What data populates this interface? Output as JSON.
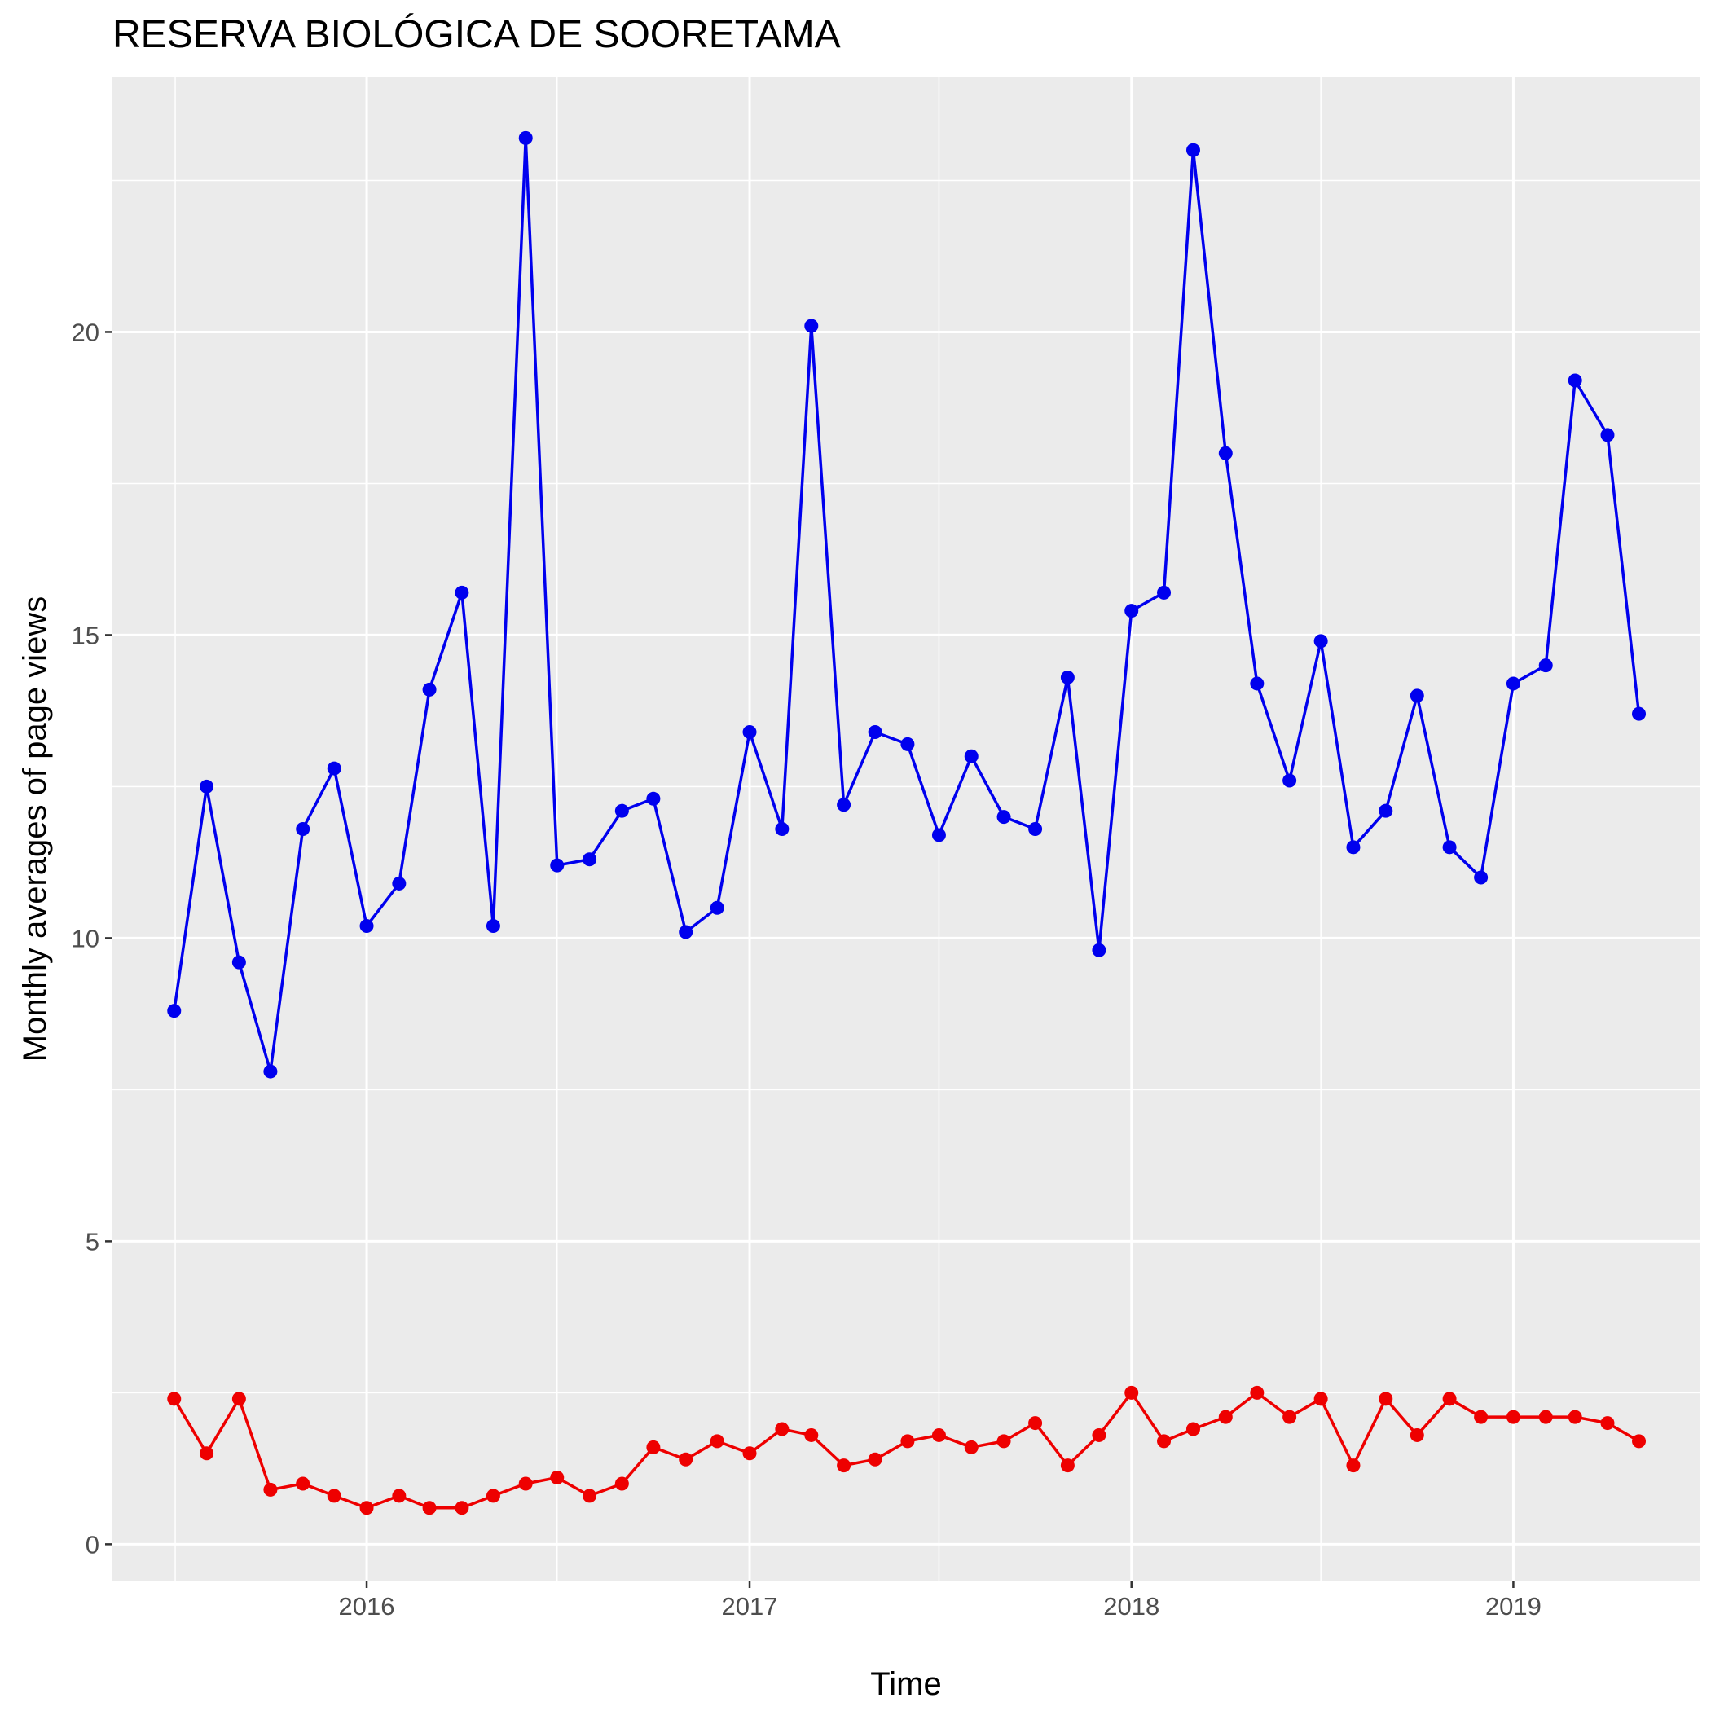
{
  "chart_data": {
    "type": "line",
    "title": "RESERVA BIOLÓGICA DE SOORETAMA",
    "xlabel": "Time",
    "ylabel": "Monthly averages of page views",
    "xlim": [
      "2015-05-03",
      "2019-06-28"
    ],
    "ylim": [
      -0.6,
      24.2
    ],
    "x_ticks": [
      {
        "date": "2016-01-01",
        "label": "2016"
      },
      {
        "date": "2017-01-01",
        "label": "2017"
      },
      {
        "date": "2018-01-01",
        "label": "2018"
      },
      {
        "date": "2019-01-01",
        "label": "2019"
      }
    ],
    "y_ticks": [
      {
        "value": 0,
        "label": "0"
      },
      {
        "value": 5,
        "label": "5"
      },
      {
        "value": 10,
        "label": "10"
      },
      {
        "value": 15,
        "label": "15"
      },
      {
        "value": 20,
        "label": "20"
      }
    ],
    "x_minor_breaks": [
      "2015-07-02",
      "2016-07-01",
      "2017-07-01",
      "2018-07-01",
      "2019-07-01"
    ],
    "y_minor_breaks": [
      2.5,
      7.5,
      12.5,
      17.5,
      22.5
    ],
    "grid": true,
    "legend": "none",
    "colors": {
      "panel_background": "#ebebeb",
      "grid_line": "#ffffff",
      "tick_mark": "#333333"
    },
    "x": [
      "2015-07-01",
      "2015-08-01",
      "2015-09-01",
      "2015-10-01",
      "2015-11-01",
      "2015-12-01",
      "2016-01-01",
      "2016-02-01",
      "2016-03-01",
      "2016-04-01",
      "2016-05-01",
      "2016-06-01",
      "2016-07-01",
      "2016-08-01",
      "2016-09-01",
      "2016-10-01",
      "2016-11-01",
      "2016-12-01",
      "2017-01-01",
      "2017-02-01",
      "2017-03-01",
      "2017-04-01",
      "2017-05-01",
      "2017-06-01",
      "2017-07-01",
      "2017-08-01",
      "2017-09-01",
      "2017-10-01",
      "2017-11-01",
      "2017-12-01",
      "2018-01-01",
      "2018-02-01",
      "2018-03-01",
      "2018-04-01",
      "2018-05-01",
      "2018-06-01",
      "2018-07-01",
      "2018-08-01",
      "2018-09-01",
      "2018-10-01",
      "2018-11-01",
      "2018-12-01",
      "2019-01-01",
      "2019-02-01",
      "2019-03-01",
      "2019-04-01",
      "2019-05-01"
    ],
    "series": [
      {
        "color": "#0000ee",
        "values": [
          8.8,
          12.5,
          9.6,
          7.8,
          11.8,
          12.8,
          10.2,
          10.9,
          14.1,
          15.7,
          10.2,
          23.2,
          11.2,
          11.3,
          12.1,
          12.3,
          10.1,
          10.5,
          13.4,
          11.8,
          20.1,
          12.2,
          13.4,
          13.2,
          11.7,
          13.0,
          12.0,
          11.8,
          14.3,
          9.8,
          15.4,
          15.7,
          23.0,
          18.0,
          14.2,
          12.6,
          14.9,
          11.5,
          12.1,
          14.0,
          11.5,
          11.0,
          14.2,
          14.5,
          19.2,
          18.3,
          13.7
        ]
      },
      {
        "color": "#ee0000",
        "values": [
          2.4,
          1.5,
          2.4,
          0.9,
          1.0,
          0.8,
          0.6,
          0.8,
          0.6,
          0.6,
          0.8,
          1.0,
          1.1,
          0.8,
          1.0,
          1.6,
          1.4,
          1.7,
          1.5,
          1.9,
          1.8,
          1.3,
          1.4,
          1.7,
          1.8,
          1.6,
          1.7,
          2.0,
          1.3,
          1.8,
          2.5,
          1.7,
          1.9,
          2.1,
          2.5,
          2.1,
          2.4,
          1.3,
          2.4,
          1.8,
          2.4,
          2.1,
          2.1,
          2.1,
          2.1,
          2.0,
          1.7
        ]
      }
    ]
  }
}
